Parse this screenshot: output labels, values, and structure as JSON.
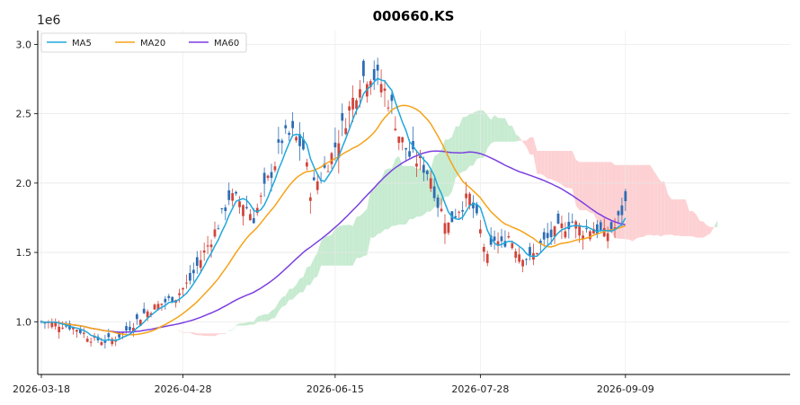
{
  "chart_data": {
    "type": "line",
    "title": "000660.KS",
    "y_offset_label": "1e6",
    "ylim": [
      0.62,
      3.1
    ],
    "yticks": [
      1.0,
      1.5,
      2.0,
      2.5,
      3.0
    ],
    "ytick_labels": [
      "1.0",
      "1.5",
      "2.0",
      "2.5",
      "3.0"
    ],
    "xtick_labels": [
      "2026-03-18",
      "2026-04-28",
      "2026-06-15",
      "2026-07-28",
      "2026-09-09"
    ],
    "grid": true,
    "legend_placement": "top-left",
    "colors": {
      "up": "#d0453a",
      "down": "#2e6db4",
      "ma5": "#1fa8dc",
      "ma20": "#f5a318",
      "ma60": "#7b3fe0",
      "cloud_bull": "#c7ebd0",
      "cloud_bear": "#fdd1d3"
    },
    "series": [
      {
        "name": "MA5"
      },
      {
        "name": "MA20"
      },
      {
        "name": "MA60"
      }
    ]
  }
}
